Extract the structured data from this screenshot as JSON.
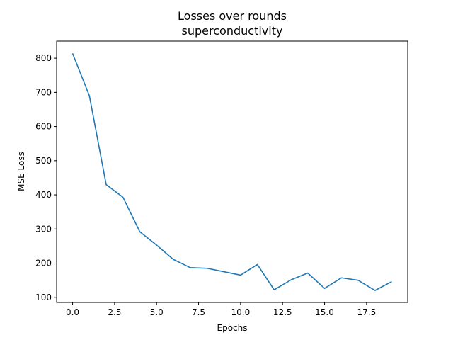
{
  "chart_data": {
    "type": "line",
    "title": "Losses over rounds",
    "subtitle": "superconductivity",
    "xlabel": "Epochs",
    "ylabel": "MSE Loss",
    "xlim": [
      -0.95,
      19.95
    ],
    "ylim": [
      85,
      850
    ],
    "xticks": [
      0.0,
      2.5,
      5.0,
      7.5,
      10.0,
      12.5,
      15.0,
      17.5
    ],
    "xtick_labels": [
      "0.0",
      "2.5",
      "5.0",
      "7.5",
      "10.0",
      "12.5",
      "15.0",
      "17.5"
    ],
    "yticks": [
      100,
      200,
      300,
      400,
      500,
      600,
      700,
      800
    ],
    "ytick_labels": [
      "100",
      "200",
      "300",
      "400",
      "500",
      "600",
      "700",
      "800"
    ],
    "grid": false,
    "series": [
      {
        "color": "#1f77b4",
        "x": [
          0,
          1,
          2,
          3,
          4,
          5,
          6,
          7,
          8,
          9,
          10,
          11,
          12,
          13,
          14,
          15,
          16,
          17,
          18,
          19
        ],
        "y": [
          814,
          690,
          430,
          393,
          292,
          253,
          211,
          187,
          185,
          175,
          165,
          196,
          122,
          151,
          171,
          126,
          157,
          150,
          120,
          146
        ]
      }
    ]
  }
}
